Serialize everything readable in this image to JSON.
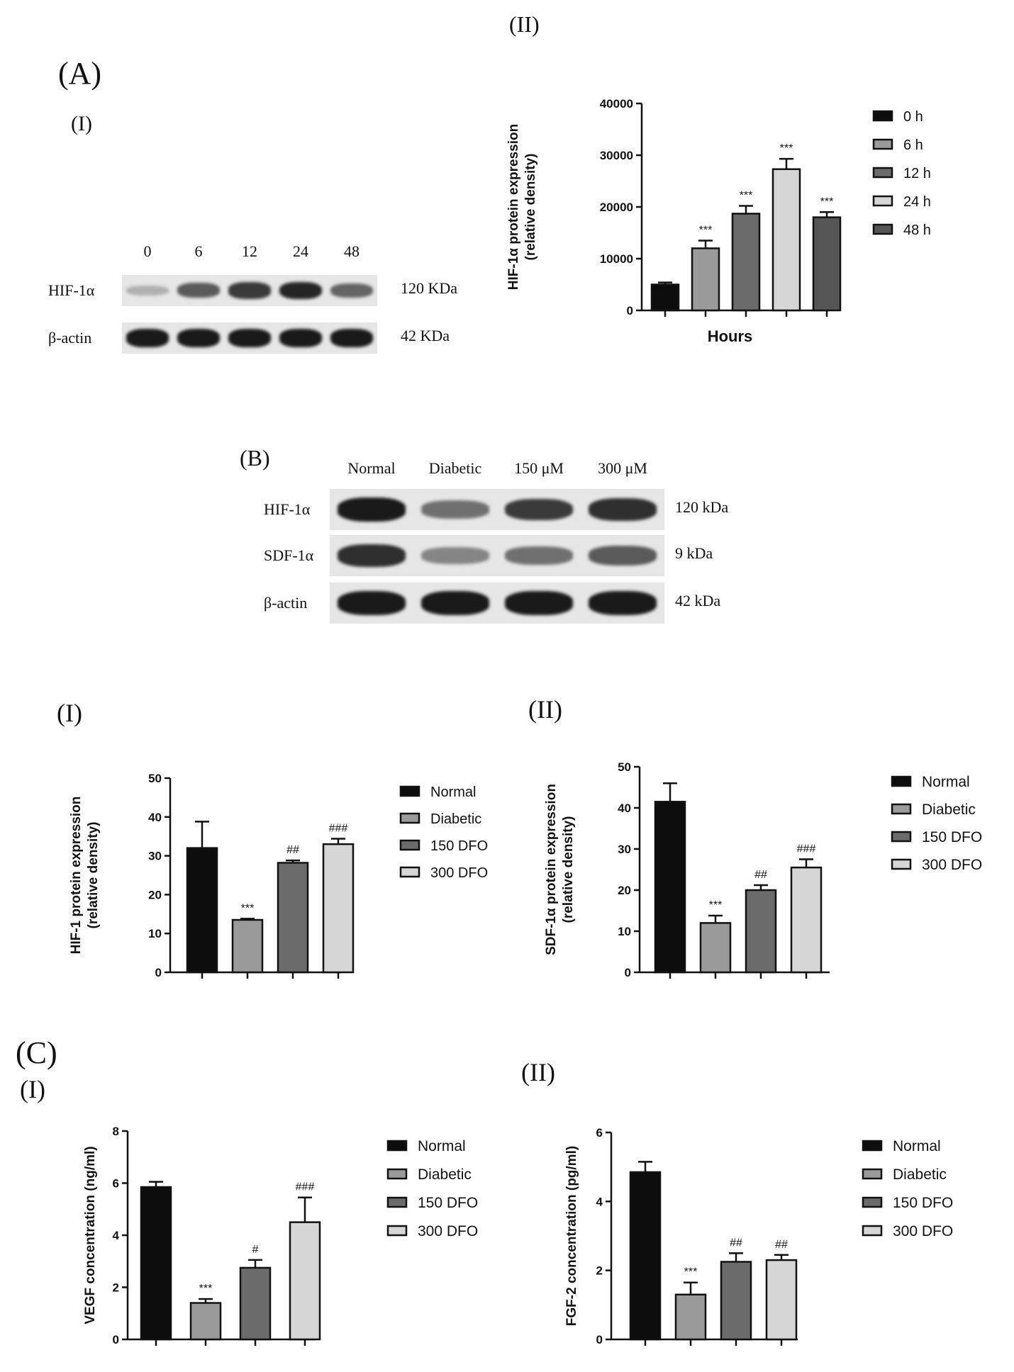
{
  "labels": {
    "A": "(A)",
    "A_I": "(I)",
    "A_II": "(II)",
    "B": "(B)",
    "B_I": "(I)",
    "B_II": "(II)",
    "C": "(C)",
    "C_I": "(I)",
    "C_II": "(II)"
  },
  "blot_A": {
    "lanes": [
      "0",
      "6",
      "12",
      "24",
      "48"
    ],
    "rows": [
      {
        "name": "HIF-1α",
        "size": "120 KDa",
        "intensity": [
          0.25,
          0.65,
          0.8,
          0.9,
          0.6
        ]
      },
      {
        "name": "β-actin",
        "size": "42 KDa",
        "intensity": [
          0.95,
          0.95,
          0.95,
          0.95,
          0.95
        ]
      }
    ]
  },
  "blot_B": {
    "lanes": [
      "Normal",
      "Diabetic",
      "150 μM",
      "300 μM"
    ],
    "rows": [
      {
        "name": "HIF-1α",
        "size": "120 kDa",
        "intensity": [
          0.95,
          0.55,
          0.8,
          0.85
        ]
      },
      {
        "name": "SDF-1α",
        "size": "9 kDa",
        "intensity": [
          0.85,
          0.45,
          0.55,
          0.65
        ]
      },
      {
        "name": "β-actin",
        "size": "42 kDa",
        "intensity": [
          0.95,
          0.95,
          0.95,
          0.95
        ]
      }
    ]
  },
  "chart_data": [
    {
      "id": "A_II",
      "type": "bar",
      "categories": [
        "0 h",
        "6 h",
        "12 h",
        "24 h",
        "48 h"
      ],
      "values": [
        5000,
        12000,
        18700,
        27300,
        18000
      ],
      "errors": [
        400,
        1500,
        1500,
        2000,
        1000
      ],
      "annotations": [
        "",
        "***",
        "***",
        "***",
        "***"
      ],
      "colors": [
        "#0d0d0d",
        "#9a9a9a",
        "#6b6b6b",
        "#d6d6d6",
        "#555555"
      ],
      "ylabel": [
        "HIF-1α protein expression",
        "(relative density)"
      ],
      "xlabel": "Hours",
      "ylim": [
        0,
        40000
      ],
      "yticks": [
        0,
        10000,
        20000,
        30000,
        40000
      ],
      "legend": [
        "0 h",
        "6 h",
        "12 h",
        "24 h",
        "48 h"
      ]
    },
    {
      "id": "B_I",
      "type": "bar",
      "categories": [
        "Normal",
        "Diabetic",
        "150 DFO",
        "300 DFO"
      ],
      "values": [
        32,
        13.5,
        28.2,
        33
      ],
      "errors": [
        6.8,
        0.3,
        0.6,
        1.4
      ],
      "annotations": [
        "",
        "***",
        "##",
        "###"
      ],
      "colors": [
        "#0d0d0d",
        "#9a9a9a",
        "#6b6b6b",
        "#d6d6d6"
      ],
      "ylabel": [
        "HIF-1 protein expression",
        "(relative density)"
      ],
      "xlabel": "",
      "ylim": [
        0,
        50
      ],
      "yticks": [
        0,
        10,
        20,
        30,
        40,
        50
      ],
      "legend": [
        "Normal",
        "Diabetic",
        "150 DFO",
        "300 DFO"
      ]
    },
    {
      "id": "B_II",
      "type": "bar",
      "categories": [
        "Normal",
        "Diabetic",
        "150 DFO",
        "300 DFO"
      ],
      "values": [
        41.5,
        12,
        20,
        25.5
      ],
      "errors": [
        4.5,
        1.8,
        1.2,
        2.0
      ],
      "annotations": [
        "",
        "***",
        "##",
        "###"
      ],
      "colors": [
        "#0d0d0d",
        "#9a9a9a",
        "#6b6b6b",
        "#d6d6d6"
      ],
      "ylabel": [
        "SDF-1α protein expression",
        "(relative density)"
      ],
      "xlabel": "",
      "ylim": [
        0,
        50
      ],
      "yticks": [
        0,
        10,
        20,
        30,
        40,
        50
      ],
      "legend": [
        "Normal",
        "Diabetic",
        "150 DFO",
        "300 DFO"
      ]
    },
    {
      "id": "C_I",
      "type": "bar",
      "categories": [
        "Normal",
        "Diabetic",
        "150 DFO",
        "300 DFO"
      ],
      "values": [
        5.85,
        1.4,
        2.75,
        4.5
      ],
      "errors": [
        0.2,
        0.15,
        0.3,
        0.95
      ],
      "annotations": [
        "",
        "***",
        "#",
        "###"
      ],
      "colors": [
        "#0d0d0d",
        "#9a9a9a",
        "#6b6b6b",
        "#d6d6d6"
      ],
      "ylabel": [
        "VEGF concentration (ng/ml)"
      ],
      "xlabel": "",
      "ylim": [
        0,
        8
      ],
      "yticks": [
        0,
        2,
        4,
        6,
        8
      ],
      "legend": [
        "Normal",
        "Diabetic",
        "150 DFO",
        "300 DFO"
      ]
    },
    {
      "id": "C_II",
      "type": "bar",
      "categories": [
        "Normal",
        "Diabetic",
        "150 DFO",
        "300 DFO"
      ],
      "values": [
        4.85,
        1.3,
        2.25,
        2.3
      ],
      "errors": [
        0.3,
        0.35,
        0.25,
        0.15
      ],
      "annotations": [
        "",
        "***",
        "##",
        "##"
      ],
      "colors": [
        "#0d0d0d",
        "#9a9a9a",
        "#6b6b6b",
        "#d6d6d6"
      ],
      "ylabel": [
        "FGF-2 concentration (pg/ml)"
      ],
      "xlabel": "",
      "ylim": [
        0,
        6
      ],
      "yticks": [
        0,
        2,
        4,
        6
      ],
      "legend": [
        "Normal",
        "Diabetic",
        "150 DFO",
        "300 DFO"
      ]
    }
  ]
}
